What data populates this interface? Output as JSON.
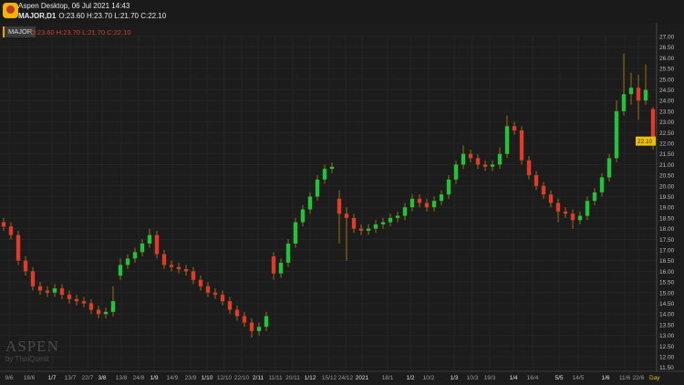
{
  "window": {
    "title": "Aspen Desktop, 06 Jul 2021 14:43"
  },
  "symbol_line": {
    "symbol": "MAJOR,D1",
    "ohlc": "O:23.60 H:23.70 L:21.70 C:22.10"
  },
  "chart_header": {
    "symbol": "MAJOR",
    "ohlc": "O:23.60 H:23.70 L:21.70 C:22.10"
  },
  "watermark": {
    "brand": "ASPEN",
    "sub": "by ThaiQuest"
  },
  "colors": {
    "up": "#1fc43a",
    "down": "#e03a2a",
    "wick": "#b8860b",
    "grid": "#2a2a2a",
    "last_price_bg": "#f0c000"
  },
  "chart_data": {
    "type": "candlestick",
    "timeframe_label": "Day",
    "last_price": "22.10",
    "y_ticks": [
      "27.00",
      "26.50",
      "26.00",
      "25.50",
      "25.00",
      "24.50",
      "24.00",
      "23.50",
      "23.00",
      "22.50",
      "22.00",
      "21.50",
      "21.00",
      "20.50",
      "20.00",
      "19.50",
      "19.00",
      "18.50",
      "18.00",
      "17.50",
      "17.00",
      "16.50",
      "16.00",
      "15.50",
      "15.00",
      "14.50",
      "14.00",
      "13.50",
      "13.00",
      "12.50",
      "12.00",
      "11.50"
    ],
    "ylim": [
      11.5,
      27.0
    ],
    "x_ticks": [
      "9/6",
      "18/6",
      "1/7",
      "13/7",
      "22/7",
      "3/8",
      "13/8",
      "24/8",
      "1/9",
      "14/9",
      "23/9",
      "1/10",
      "12/10",
      "22/10",
      "2/11",
      "11/11",
      "20/11",
      "1/12",
      "15/12",
      "24/12",
      "2021",
      "18/1",
      "1/2",
      "10/2",
      "1/3",
      "10/3",
      "19/3",
      "1/4",
      "16/4",
      "5/5",
      "14/5",
      "1/6",
      "11/6",
      "22/6"
    ],
    "candles_ohlc": [
      [
        18.3,
        18.5,
        17.9,
        18.1
      ],
      [
        18.1,
        18.3,
        17.5,
        17.7
      ],
      [
        17.7,
        17.9,
        16.3,
        16.5
      ],
      [
        16.5,
        16.7,
        15.8,
        16.0
      ],
      [
        16.0,
        16.2,
        15.1,
        15.3
      ],
      [
        15.3,
        15.5,
        14.9,
        15.1
      ],
      [
        15.1,
        15.3,
        14.8,
        15.0
      ],
      [
        15.0,
        15.4,
        14.8,
        15.2
      ],
      [
        15.2,
        15.4,
        14.7,
        14.9
      ],
      [
        14.9,
        15.1,
        14.5,
        14.7
      ],
      [
        14.7,
        14.9,
        14.4,
        14.6
      ],
      [
        14.6,
        14.8,
        14.3,
        14.5
      ],
      [
        14.5,
        14.7,
        14.0,
        14.2
      ],
      [
        14.2,
        14.4,
        13.8,
        14.0
      ],
      [
        14.0,
        14.3,
        13.8,
        14.1
      ],
      [
        14.1,
        15.3,
        13.9,
        14.6
      ],
      [
        15.8,
        16.6,
        15.6,
        16.3
      ],
      [
        16.3,
        16.8,
        16.1,
        16.6
      ],
      [
        16.6,
        17.1,
        16.4,
        16.9
      ],
      [
        16.9,
        17.5,
        16.7,
        17.3
      ],
      [
        17.3,
        18.0,
        17.1,
        17.7
      ],
      [
        17.7,
        17.9,
        16.6,
        16.8
      ],
      [
        16.8,
        17.0,
        16.1,
        16.3
      ],
      [
        16.3,
        16.5,
        16.0,
        16.2
      ],
      [
        16.2,
        16.4,
        15.9,
        16.1
      ],
      [
        16.1,
        16.3,
        15.8,
        16.0
      ],
      [
        16.0,
        16.2,
        15.4,
        15.6
      ],
      [
        15.6,
        15.8,
        15.1,
        15.3
      ],
      [
        15.3,
        15.5,
        14.8,
        15.0
      ],
      [
        15.0,
        15.2,
        14.7,
        14.9
      ],
      [
        14.9,
        15.1,
        14.4,
        14.6
      ],
      [
        14.6,
        14.8,
        14.0,
        14.2
      ],
      [
        14.2,
        14.4,
        13.7,
        13.9
      ],
      [
        13.9,
        14.1,
        13.4,
        13.6
      ],
      [
        13.6,
        13.8,
        12.9,
        13.2
      ],
      [
        13.2,
        13.6,
        13.0,
        13.4
      ],
      [
        13.4,
        14.1,
        13.2,
        13.9
      ],
      [
        16.7,
        16.9,
        15.6,
        15.9
      ],
      [
        15.9,
        16.6,
        15.7,
        16.4
      ],
      [
        16.4,
        17.5,
        16.2,
        17.3
      ],
      [
        17.3,
        18.5,
        17.1,
        18.3
      ],
      [
        18.3,
        19.1,
        18.1,
        18.9
      ],
      [
        18.9,
        19.7,
        18.7,
        19.5
      ],
      [
        19.5,
        20.5,
        19.3,
        20.3
      ],
      [
        20.3,
        21.0,
        20.1,
        20.8
      ],
      [
        20.8,
        21.1,
        20.6,
        20.9
      ],
      [
        19.4,
        19.8,
        17.3,
        18.7
      ],
      [
        18.7,
        19.0,
        16.5,
        18.5
      ],
      [
        18.5,
        18.7,
        17.8,
        18.0
      ],
      [
        18.0,
        18.2,
        17.7,
        17.9
      ],
      [
        17.9,
        18.2,
        17.7,
        18.0
      ],
      [
        18.0,
        18.4,
        17.8,
        18.2
      ],
      [
        18.2,
        18.5,
        18.0,
        18.3
      ],
      [
        18.3,
        18.7,
        18.1,
        18.5
      ],
      [
        18.5,
        18.8,
        18.3,
        18.6
      ],
      [
        18.6,
        19.2,
        18.4,
        19.0
      ],
      [
        19.0,
        19.6,
        18.8,
        19.4
      ],
      [
        19.4,
        19.6,
        19.0,
        19.2
      ],
      [
        19.2,
        19.4,
        18.8,
        19.0
      ],
      [
        19.0,
        19.5,
        18.8,
        19.3
      ],
      [
        19.3,
        19.8,
        19.1,
        19.6
      ],
      [
        19.6,
        20.5,
        19.4,
        20.3
      ],
      [
        20.3,
        21.2,
        20.1,
        21.0
      ],
      [
        21.0,
        21.9,
        20.8,
        21.5
      ],
      [
        21.5,
        21.7,
        21.1,
        21.3
      ],
      [
        21.3,
        21.5,
        20.8,
        21.0
      ],
      [
        21.0,
        21.2,
        20.7,
        20.9
      ],
      [
        20.9,
        21.2,
        20.7,
        21.0
      ],
      [
        21.0,
        21.8,
        20.8,
        21.5
      ],
      [
        21.5,
        23.3,
        21.3,
        22.8
      ],
      [
        22.8,
        23.0,
        22.4,
        22.6
      ],
      [
        22.6,
        22.8,
        21.0,
        21.2
      ],
      [
        21.2,
        21.4,
        20.3,
        20.5
      ],
      [
        20.5,
        20.7,
        19.8,
        20.0
      ],
      [
        20.0,
        20.2,
        19.4,
        19.6
      ],
      [
        19.6,
        19.8,
        19.0,
        19.2
      ],
      [
        19.2,
        19.4,
        18.3,
        18.8
      ],
      [
        18.8,
        19.0,
        18.5,
        18.7
      ],
      [
        18.7,
        18.9,
        18.0,
        18.4
      ],
      [
        18.4,
        18.8,
        18.2,
        18.6
      ],
      [
        18.6,
        19.5,
        18.4,
        19.3
      ],
      [
        19.3,
        19.9,
        19.1,
        19.7
      ],
      [
        19.7,
        20.6,
        19.5,
        20.4
      ],
      [
        20.4,
        21.5,
        20.2,
        21.3
      ],
      [
        21.3,
        24.0,
        21.1,
        23.5
      ],
      [
        23.5,
        26.2,
        23.3,
        24.3
      ],
      [
        24.3,
        25.3,
        23.8,
        24.6
      ],
      [
        24.6,
        25.2,
        23.1,
        24.0
      ],
      [
        24.0,
        25.7,
        23.8,
        24.5
      ],
      [
        23.6,
        23.7,
        21.7,
        22.1
      ]
    ]
  }
}
